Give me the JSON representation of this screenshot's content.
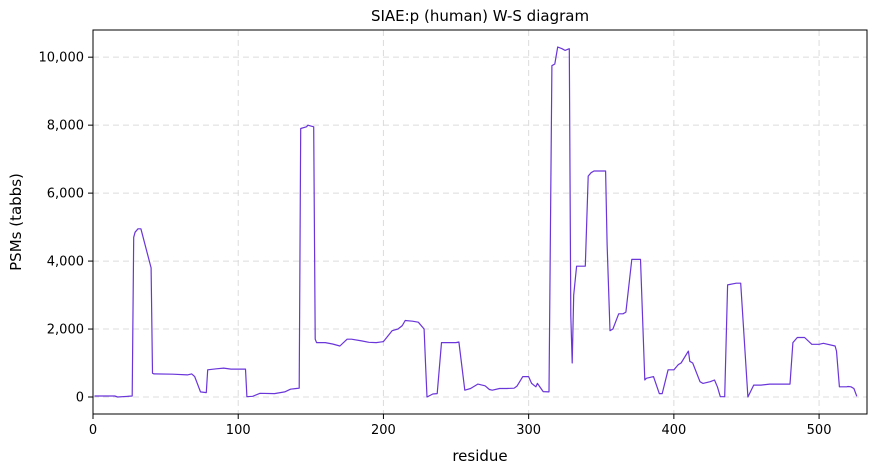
{
  "chart_data": {
    "type": "line",
    "title": "SIAE:p (human) W-S diagram",
    "xlabel": "residue",
    "ylabel": "PSMs (tabbs)",
    "xlim": [
      0,
      533
    ],
    "ylim": [
      -500,
      10800
    ],
    "grid": true,
    "color": "#6a35d9",
    "xticks": [
      0,
      100,
      200,
      300,
      400,
      500
    ],
    "xtick_labels": [
      "0",
      "100",
      "200",
      "300",
      "400",
      "500"
    ],
    "yticks": [
      0,
      2000,
      4000,
      6000,
      8000,
      10000
    ],
    "ytick_labels": [
      "0",
      "2,000",
      "4,000",
      "6,000",
      "8,000",
      "10,000"
    ],
    "series": [
      {
        "x": [
          1,
          15,
          17,
          27,
          28,
          29,
          31,
          33,
          40,
          41,
          42,
          55,
          65,
          68,
          70,
          74,
          78,
          79,
          85,
          90,
          95,
          105,
          106,
          110,
          115,
          125,
          132,
          136,
          140,
          142,
          143,
          147,
          148,
          152,
          153,
          154,
          156,
          160,
          165,
          170,
          175,
          178,
          185,
          190,
          195,
          200,
          206,
          210,
          213,
          215,
          220,
          224,
          228,
          229,
          230,
          234,
          237,
          240,
          250,
          252,
          256,
          260,
          265,
          270,
          273,
          275,
          280,
          285,
          290,
          292,
          296,
          300,
          302,
          305,
          306,
          310,
          314,
          316,
          318,
          320,
          323,
          325,
          328,
          329,
          330,
          331,
          333,
          339,
          341,
          343,
          345,
          348,
          350,
          353,
          354,
          356,
          358,
          362,
          365,
          367,
          371,
          377,
          380,
          381,
          386,
          390,
          392,
          396,
          400,
          402,
          403,
          405,
          410,
          411,
          413,
          418,
          420,
          425,
          428,
          430,
          432,
          435,
          437,
          443,
          444,
          446,
          451,
          455,
          460,
          466,
          474,
          479,
          480,
          482,
          485,
          490,
          495,
          500,
          503,
          511,
          512,
          514,
          519,
          520,
          522,
          524,
          526
        ],
        "y": [
          30,
          30,
          0,
          30,
          4700,
          4850,
          4950,
          4950,
          3800,
          700,
          680,
          670,
          650,
          680,
          600,
          150,
          130,
          800,
          830,
          850,
          820,
          820,
          10,
          20,
          110,
          100,
          150,
          230,
          250,
          260,
          7900,
          7950,
          8000,
          7950,
          1700,
          1600,
          1600,
          1600,
          1560,
          1500,
          1700,
          1700,
          1650,
          1610,
          1600,
          1630,
          1950,
          2000,
          2100,
          2250,
          2230,
          2200,
          2000,
          1000,
          0,
          90,
          100,
          1600,
          1600,
          1620,
          200,
          250,
          380,
          330,
          220,
          200,
          250,
          250,
          260,
          320,
          600,
          600,
          400,
          300,
          400,
          160,
          150,
          9750,
          9800,
          10300,
          10250,
          10200,
          10250,
          2400,
          1000,
          3000,
          3850,
          3850,
          6500,
          6600,
          6650,
          6650,
          6650,
          6650,
          4500,
          1950,
          2000,
          2450,
          2450,
          2500,
          4050,
          4050,
          500,
          550,
          600,
          100,
          100,
          800,
          800,
          900,
          950,
          1000,
          1350,
          1050,
          1000,
          450,
          400,
          450,
          500,
          300,
          10,
          10,
          3300,
          3350,
          3350,
          3350,
          0,
          350,
          350,
          380,
          380,
          380,
          380,
          1600,
          1750,
          1750,
          1550,
          1550,
          1580,
          1500,
          1350,
          300,
          300,
          310,
          300,
          250,
          20
        ]
      }
    ]
  }
}
